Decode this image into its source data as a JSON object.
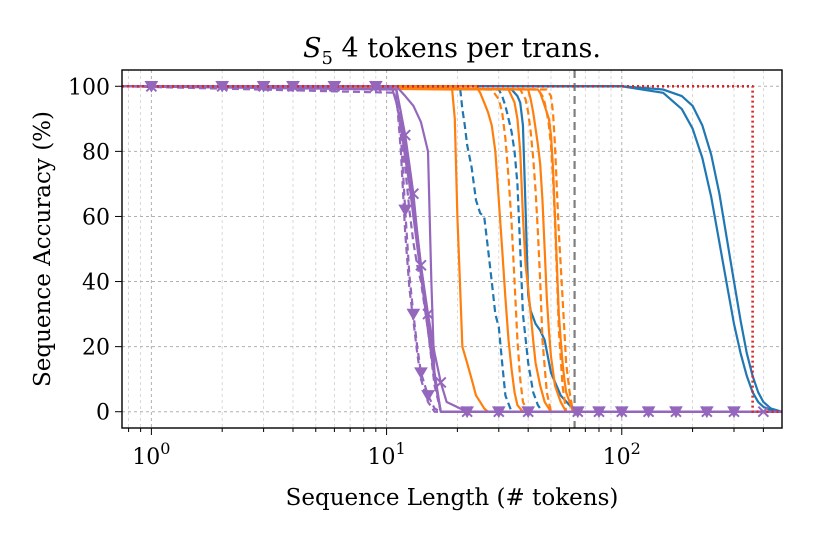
{
  "chart_data": {
    "type": "line",
    "title": {
      "symbol": "S",
      "subscript": "5",
      "rest": " 4 tokens per trans."
    },
    "xlabel": "Sequence Length (# tokens)",
    "ylabel": "Sequence Accuracy (%)",
    "xscale": "log",
    "xlim": [
      0.75,
      480
    ],
    "ylim": [
      -5,
      105
    ],
    "xticks": [
      {
        "value": 1,
        "base": "10",
        "exp": "0"
      },
      {
        "value": 10,
        "base": "10",
        "exp": "1"
      },
      {
        "value": 100,
        "base": "10",
        "exp": "2"
      }
    ],
    "yticks": [
      0,
      20,
      40,
      60,
      80,
      100
    ],
    "ytick_labels": [
      "0",
      "20",
      "40",
      "60",
      "80",
      "100"
    ],
    "grid": true,
    "vline": {
      "x": 63,
      "color": "#7f7f7f",
      "style": "dashed"
    },
    "colors": {
      "blue": "#1f77b4",
      "orange": "#ff7f0e",
      "purple": "#9467bd",
      "red": "#d62728"
    },
    "series": [
      {
        "name": "red-dotted",
        "color": "red",
        "style": "dotted",
        "marker": "none",
        "x": [
          0.75,
          360,
          360,
          480
        ],
        "y": [
          100,
          100,
          0,
          0
        ]
      },
      {
        "name": "blue-solid-1",
        "color": "blue",
        "style": "solid",
        "marker": "none",
        "x": [
          0.75,
          100,
          150,
          180,
          200,
          220,
          240,
          260,
          280,
          300,
          320,
          340,
          360,
          380,
          400,
          430,
          480
        ],
        "y": [
          100,
          100,
          99,
          97,
          94,
          88,
          79,
          67,
          53,
          40,
          28,
          18,
          11,
          6,
          3,
          1,
          0
        ]
      },
      {
        "name": "blue-solid-2",
        "color": "blue",
        "style": "solid",
        "marker": "none",
        "x": [
          0.75,
          100,
          150,
          180,
          200,
          220,
          240,
          260,
          280,
          300,
          320,
          340,
          360,
          380,
          400,
          430,
          480
        ],
        "y": [
          100,
          100,
          98,
          93,
          87,
          78,
          66,
          52,
          39,
          27,
          18,
          11,
          6,
          3,
          1.5,
          0.5,
          0
        ]
      },
      {
        "name": "blue-solid-3",
        "color": "blue",
        "style": "solid",
        "marker": "none",
        "x": [
          0.75,
          34,
          36,
          37,
          38,
          39,
          40,
          41,
          42,
          43,
          45,
          47,
          50,
          55,
          60,
          65,
          480
        ],
        "y": [
          100,
          99,
          97,
          95,
          88,
          62,
          36,
          31,
          29,
          27,
          25,
          22,
          12,
          5,
          2,
          0,
          0
        ]
      },
      {
        "name": "blue-dashed-1",
        "color": "blue",
        "style": "dashed",
        "marker": "none",
        "x": [
          0.75,
          20.5,
          21,
          21.5,
          22,
          23,
          24,
          25,
          26,
          27,
          28,
          29,
          30,
          31,
          32,
          34,
          480
        ],
        "y": [
          100,
          100,
          93,
          88,
          82,
          75,
          65,
          61,
          60,
          50,
          40,
          30,
          26,
          15,
          5,
          0,
          0
        ]
      },
      {
        "name": "blue-dashed-2",
        "color": "blue",
        "style": "dashed",
        "marker": "none",
        "x": [
          0.75,
          30,
          31,
          32,
          33,
          34,
          35,
          36,
          37,
          38,
          40,
          42,
          44,
          46,
          480
        ],
        "y": [
          100,
          99,
          97,
          94,
          90,
          86,
          80,
          70,
          50,
          30,
          15,
          6,
          2,
          0,
          0
        ]
      },
      {
        "name": "orange-solid-1",
        "color": "orange",
        "style": "solid",
        "marker": "none",
        "x": [
          0.75,
          19,
          19.5,
          20,
          20.5,
          21,
          22,
          23,
          24,
          25,
          26,
          27,
          480
        ],
        "y": [
          100,
          99,
          90,
          60,
          40,
          20,
          15,
          10,
          5,
          3,
          1,
          0,
          0
        ]
      },
      {
        "name": "orange-solid-2",
        "color": "orange",
        "style": "solid",
        "marker": "none",
        "x": [
          0.75,
          24,
          25,
          26,
          27,
          28,
          29,
          30,
          31,
          32,
          33,
          34,
          35,
          36,
          38,
          480
        ],
        "y": [
          100,
          100,
          98,
          95,
          92,
          88,
          80,
          65,
          50,
          35,
          22,
          13,
          6,
          2,
          0,
          0
        ]
      },
      {
        "name": "orange-solid-3",
        "color": "orange",
        "style": "solid",
        "marker": "none",
        "x": [
          0.75,
          33,
          35,
          36,
          37,
          38,
          39,
          40,
          41,
          42,
          43,
          45,
          47,
          50,
          480
        ],
        "y": [
          100,
          99,
          95,
          90,
          80,
          60,
          45,
          38,
          30,
          22,
          15,
          8,
          3,
          0,
          0
        ]
      },
      {
        "name": "orange-solid-4",
        "color": "orange",
        "style": "solid",
        "marker": "none",
        "x": [
          0.75,
          40,
          41,
          42,
          43,
          44,
          45,
          46,
          47,
          48,
          49,
          50,
          52,
          55,
          58,
          480
        ],
        "y": [
          100,
          99,
          96,
          92,
          87,
          82,
          76,
          65,
          50,
          35,
          25,
          17,
          8,
          3,
          0,
          0
        ]
      },
      {
        "name": "orange-solid-5",
        "color": "orange",
        "style": "solid",
        "marker": "none",
        "x": [
          0.75,
          44,
          45,
          46,
          47,
          48,
          49,
          50,
          51,
          52,
          53,
          54,
          55,
          56,
          57,
          58,
          60,
          62,
          480
        ],
        "y": [
          100,
          99,
          98,
          96,
          94,
          92,
          90,
          85,
          75,
          60,
          45,
          30,
          22,
          15,
          10,
          6,
          3,
          0,
          0
        ]
      },
      {
        "name": "orange-dashed-1",
        "color": "orange",
        "style": "dashed",
        "marker": "none",
        "x": [
          0.75,
          28,
          30,
          31,
          32,
          33,
          34,
          35,
          36,
          37,
          38,
          40,
          480
        ],
        "y": [
          100,
          99,
          96,
          92,
          84,
          72,
          58,
          40,
          22,
          10,
          3,
          0,
          0
        ]
      },
      {
        "name": "orange-dashed-2",
        "color": "orange",
        "style": "dashed",
        "marker": "none",
        "x": [
          0.75,
          37,
          39,
          40,
          41,
          42,
          43,
          44,
          45,
          46,
          48,
          50,
          480
        ],
        "y": [
          100,
          99,
          96,
          92,
          86,
          78,
          68,
          55,
          40,
          22,
          6,
          0,
          0
        ]
      },
      {
        "name": "orange-dashed-3",
        "color": "orange",
        "style": "dashed",
        "marker": "none",
        "x": [
          0.75,
          44,
          46,
          47,
          48,
          49,
          50,
          51,
          52,
          53,
          54,
          56,
          58,
          480
        ],
        "y": [
          100,
          99,
          97,
          95,
          92,
          88,
          82,
          72,
          58,
          42,
          25,
          8,
          0,
          0
        ]
      },
      {
        "name": "orange-dashed-4",
        "color": "orange",
        "style": "dashed",
        "marker": "none",
        "x": [
          0.75,
          48,
          50,
          51,
          52,
          53,
          54,
          55,
          56,
          57,
          58,
          60,
          62,
          480
        ],
        "y": [
          100,
          99,
          97,
          92,
          82,
          68,
          55,
          45,
          35,
          25,
          15,
          6,
          0,
          0
        ]
      },
      {
        "name": "purple-solid-1",
        "color": "purple",
        "style": "solid",
        "marker": "x",
        "x": [
          0.75,
          1,
          2,
          3,
          4,
          6,
          9,
          11,
          11.5,
          12,
          12.5,
          13,
          13.5,
          14,
          15,
          16,
          17,
          18,
          22,
          30,
          40,
          50,
          65,
          80,
          100,
          130,
          170,
          230,
          300,
          400,
          480
        ],
        "y": [
          100,
          100,
          100,
          100,
          100,
          100,
          100,
          99,
          92,
          85,
          76,
          67,
          55,
          45,
          30,
          18,
          9,
          3,
          0,
          0,
          0,
          0,
          0,
          0,
          0,
          0,
          0,
          0,
          0,
          0,
          0
        ],
        "markers_x": [
          1,
          2,
          3,
          4,
          6,
          9,
          12,
          13,
          14,
          15,
          17,
          22,
          30,
          40,
          65,
          80,
          100,
          130,
          170,
          230,
          300,
          400
        ]
      },
      {
        "name": "purple-solid-2",
        "color": "purple",
        "style": "solid",
        "marker": "none",
        "x": [
          0.75,
          11,
          12,
          13,
          14,
          15,
          15.5,
          16,
          17,
          480
        ],
        "y": [
          100,
          100,
          97,
          94,
          89,
          80,
          40,
          10,
          0,
          0
        ]
      },
      {
        "name": "purple-solid-3",
        "color": "purple",
        "style": "solid",
        "marker": "none",
        "x": [
          0.75,
          10.5,
          11,
          11.5,
          12,
          12.5,
          13,
          14,
          15,
          16,
          17,
          480
        ],
        "y": [
          100,
          100,
          95,
          88,
          78,
          70,
          60,
          42,
          25,
          10,
          0,
          0
        ]
      },
      {
        "name": "purple-solid-4",
        "color": "purple",
        "style": "solid",
        "marker": "none",
        "x": [
          0.75,
          11,
          11.5,
          12,
          12.5,
          13,
          13.5,
          14,
          15,
          16,
          17,
          480
        ],
        "y": [
          100,
          99,
          92,
          82,
          72,
          63,
          55,
          45,
          28,
          12,
          0,
          0
        ]
      },
      {
        "name": "purple-dashed-1",
        "color": "purple",
        "style": "dashed",
        "marker": "triangle",
        "x": [
          0.75,
          1,
          2,
          3,
          4,
          6,
          9,
          11,
          11.5,
          12,
          12.5,
          13,
          13.5,
          14,
          15,
          16,
          17,
          480
        ],
        "y": [
          100,
          100,
          100,
          100,
          100,
          100,
          100,
          99,
          85,
          62,
          42,
          30,
          20,
          12,
          5,
          1,
          0,
          0
        ],
        "markers_x": [
          1,
          2,
          3,
          4,
          6,
          9,
          12,
          13,
          14,
          15,
          22,
          30,
          40,
          65,
          80,
          100,
          130,
          170,
          230,
          300
        ]
      },
      {
        "name": "purple-dashed-2",
        "color": "purple",
        "style": "dashed",
        "marker": "none",
        "x": [
          0.75,
          11,
          11.5,
          12,
          12.5,
          13,
          13.5,
          14,
          15,
          16,
          17,
          480
        ],
        "y": [
          100,
          99,
          88,
          75,
          62,
          52,
          45,
          40,
          25,
          8,
          0,
          0
        ]
      },
      {
        "name": "purple-dashed-3",
        "color": "purple",
        "style": "dashed",
        "marker": "none",
        "x": [
          0.75,
          11,
          11.5,
          12,
          12.5,
          13,
          13.5,
          14,
          15,
          16,
          480
        ],
        "y": [
          100,
          98,
          80,
          55,
          38,
          28,
          18,
          10,
          3,
          0,
          0
        ]
      }
    ]
  }
}
